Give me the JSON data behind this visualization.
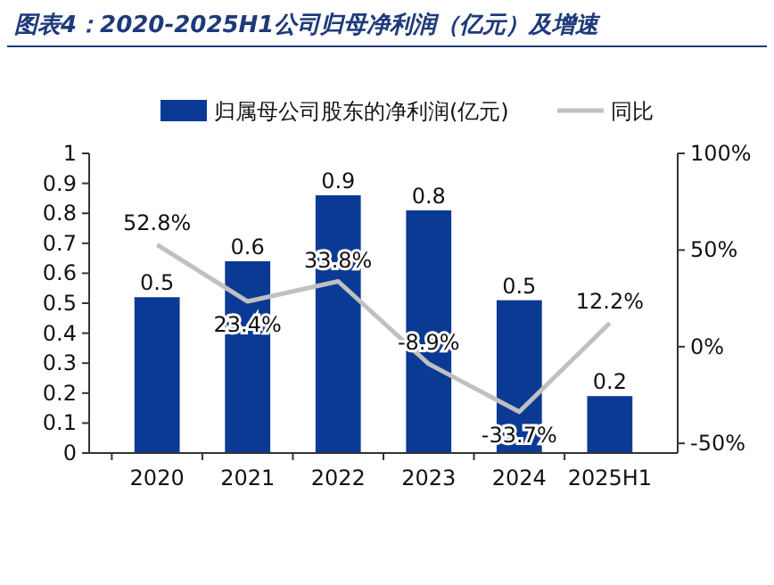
{
  "chart_data": {
    "type": "bar",
    "title": "图表4：2020-2025H1公司归母净利润（亿元）及增速",
    "categories": [
      "2020",
      "2021",
      "2022",
      "2023",
      "2024",
      "2025H1"
    ],
    "series": [
      {
        "name": "归属母公司股东的净利润(亿元)",
        "color": "#0b3a94",
        "values": [
          0.52,
          0.64,
          0.86,
          0.81,
          0.51,
          0.19
        ],
        "value_labels": [
          "0.5",
          "0.6",
          "0.9",
          "0.8",
          "0.5",
          "0.2"
        ]
      },
      {
        "name": "同比",
        "type": "line",
        "axis": "y2",
        "color": "#c0c0c0",
        "values": [
          52.8,
          23.4,
          33.8,
          -8.9,
          -33.7,
          12.2
        ],
        "value_labels": [
          "52.8%",
          "23.4%",
          "33.8%",
          "-8.9%",
          "-33.7%",
          "12.2%"
        ]
      }
    ],
    "ylim": [
      0,
      1
    ],
    "yticks": [
      0,
      0.1,
      0.2,
      0.3,
      0.4,
      0.5,
      0.6,
      0.7,
      0.8,
      0.9,
      {
        "value": 1,
        "label": "1"
      }
    ],
    "y2lim": [
      -55,
      100
    ],
    "y2ticks": [
      {
        "value": 100,
        "label": "100%"
      },
      {
        "value": 50,
        "label": "50%"
      },
      {
        "value": 0,
        "label": "0%"
      },
      {
        "value": -50,
        "label": "-50%"
      }
    ],
    "legend": "top",
    "grid": false,
    "marker": "none",
    "line_style": "solid"
  }
}
